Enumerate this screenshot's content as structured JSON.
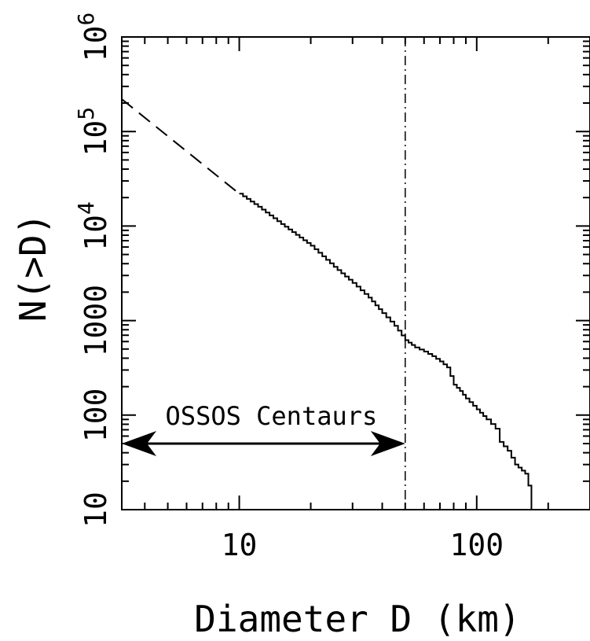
{
  "chart_data": {
    "type": "line",
    "title": "",
    "xlabel": "Diameter D (km)",
    "ylabel": "N(>D)",
    "x_scale": "log",
    "y_scale": "log",
    "xlim": [
      3.2,
      300
    ],
    "ylim": [
      10,
      1000000
    ],
    "grid": false,
    "legend": "none",
    "x_ticks": [
      {
        "value": 10,
        "label": "10"
      },
      {
        "value": 100,
        "label": "100"
      }
    ],
    "y_ticks": [
      {
        "value": 10,
        "label": "10",
        "sup": ""
      },
      {
        "value": 100,
        "label": "100",
        "sup": ""
      },
      {
        "value": 1000,
        "label": "1000",
        "sup": ""
      },
      {
        "value": 10000,
        "label": "10",
        "sup": "4"
      },
      {
        "value": 100000,
        "label": "10",
        "sup": "5"
      },
      {
        "value": 1000000,
        "label": "10",
        "sup": "6"
      }
    ],
    "series": [
      {
        "style": "dashed",
        "points": [
          [
            3.2,
            220000
          ],
          [
            10,
            22000
          ]
        ]
      },
      {
        "style": "solid-step",
        "points": [
          [
            10,
            22000
          ],
          [
            12,
            16000
          ],
          [
            15,
            10500
          ],
          [
            20,
            6200
          ],
          [
            25,
            3700
          ],
          [
            30,
            2500
          ],
          [
            35,
            1750
          ],
          [
            40,
            1200
          ],
          [
            45,
            880
          ],
          [
            50,
            620
          ],
          [
            55,
            520
          ],
          [
            60,
            470
          ],
          [
            65,
            420
          ],
          [
            70,
            370
          ],
          [
            75,
            320
          ],
          [
            80,
            210
          ],
          [
            85,
            180
          ],
          [
            90,
            150
          ],
          [
            100,
            115
          ],
          [
            110,
            90
          ],
          [
            120,
            72
          ],
          [
            125,
            52
          ],
          [
            135,
            42
          ],
          [
            145,
            30
          ],
          [
            160,
            24
          ],
          [
            165,
            18
          ],
          [
            170,
            10
          ]
        ]
      }
    ],
    "vertical_line": {
      "x": 50,
      "style": "dash-dot"
    },
    "annotation": {
      "text": "OSSOS Centaurs",
      "arrow_from": 3.2,
      "arrow_to": 50,
      "y": 50
    }
  }
}
